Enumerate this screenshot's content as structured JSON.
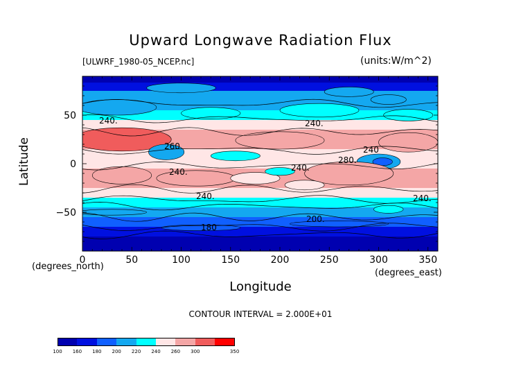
{
  "chart_data": {
    "type": "heatmap",
    "title": "Upward Longwave Radiation Flux",
    "dataset_label": "[ULWRF_1980-05_NCEP.nc]",
    "units_label": "(units:W/m^2)",
    "xlabel": "Longitude",
    "ylabel": "Latitude",
    "x_unit_label": "(degrees_north)",
    "x_unit_label_2": "(degrees_east)",
    "xlim": [
      0,
      360
    ],
    "ylim": [
      -90,
      90
    ],
    "x_ticks": [
      0,
      50,
      100,
      150,
      200,
      250,
      300,
      350
    ],
    "y_ticks": [
      50,
      0,
      -50
    ],
    "contour_interval_text": "CONTOUR INTERVAL = 2.000E+01",
    "contour_labels": [
      "240.",
      "260",
      "240.",
      "240.",
      "240.",
      "240",
      "240.",
      "280.",
      "240.",
      "200.",
      "180"
    ],
    "colorbar": {
      "levels": [
        "100",
        "160",
        "180",
        "200",
        "220",
        "240",
        "260",
        "300",
        "350"
      ],
      "colors": [
        "#0000b0",
        "#0010e0",
        "#1060ff",
        "#14a8f0",
        "#00ffff",
        "#ffe6e6",
        "#f4a6a6",
        "#f05c5c",
        "#ff0000"
      ]
    },
    "latitude_profile": [
      {
        "lat": 87,
        "value": 150
      },
      {
        "lat": 80,
        "value": 170
      },
      {
        "lat": 70,
        "value": 200
      },
      {
        "lat": 60,
        "value": 215
      },
      {
        "lat": 50,
        "value": 225
      },
      {
        "lat": 40,
        "value": 245
      },
      {
        "lat": 30,
        "value": 265
      },
      {
        "lat": 20,
        "value": 280
      },
      {
        "lat": 10,
        "value": 250
      },
      {
        "lat": 0,
        "value": 255
      },
      {
        "lat": -10,
        "value": 265
      },
      {
        "lat": -20,
        "value": 270
      },
      {
        "lat": -30,
        "value": 255
      },
      {
        "lat": -40,
        "value": 235
      },
      {
        "lat": -50,
        "value": 210
      },
      {
        "lat": -60,
        "value": 195
      },
      {
        "lat": -70,
        "value": 170
      },
      {
        "lat": -80,
        "value": 145
      },
      {
        "lat": -90,
        "value": 135
      }
    ]
  }
}
